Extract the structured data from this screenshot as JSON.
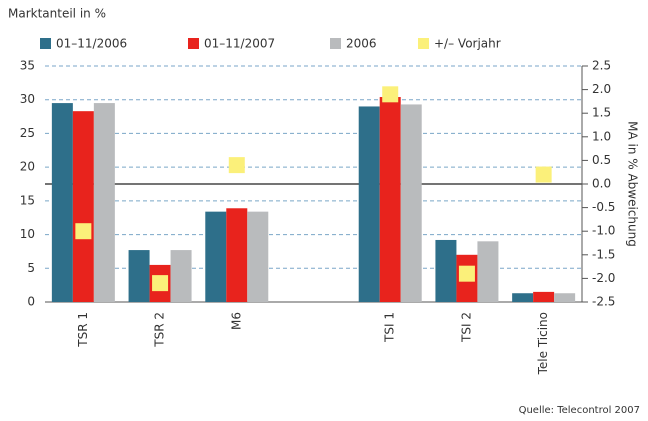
{
  "chart_data": {
    "type": "bar",
    "title": "Marktanteil in %",
    "y2_label": "MA in % Abweichung",
    "source": "Quelle: Telecontrol 2007",
    "categories": [
      "TSR 1",
      "TSR 2",
      "M6",
      null,
      "TSI 1",
      "TSI 2",
      "Tele Ticino"
    ],
    "series": [
      {
        "name": "01–11/2006",
        "color": "#2e6f8a",
        "values": [
          29.5,
          7.7,
          13.4,
          null,
          29.0,
          9.2,
          1.3
        ]
      },
      {
        "name": "01–11/2007",
        "color": "#e8231d",
        "values": [
          28.3,
          5.5,
          13.9,
          null,
          30.4,
          7.0,
          1.5
        ]
      },
      {
        "name": "2006",
        "color": "#b9bbbd",
        "values": [
          29.5,
          7.7,
          13.4,
          null,
          29.3,
          9.0,
          1.3
        ]
      },
      {
        "name": "+/– Vorjahr",
        "color": "#fbf07a",
        "axis": "y2",
        "values": [
          -1.0,
          -2.1,
          0.4,
          null,
          1.9,
          -1.9,
          0.2
        ]
      }
    ],
    "ylim": [
      0,
      35
    ],
    "yticks": [
      0,
      5,
      10,
      15,
      20,
      25,
      30,
      35
    ],
    "y2lim": [
      -2.5,
      2.5
    ],
    "y2ticks": [
      -2.5,
      {
        "value": -2,
        "label": "-2.0"
      },
      -1.5,
      {
        "value": -1,
        "label": "-1.0"
      },
      -0.5,
      {
        "value": 0,
        "label": "0.0"
      },
      0.5,
      {
        "value": 1,
        "label": "1.0"
      },
      1.5,
      {
        "value": 2,
        "label": "2.0"
      },
      2.5
    ],
    "grid": true
  }
}
